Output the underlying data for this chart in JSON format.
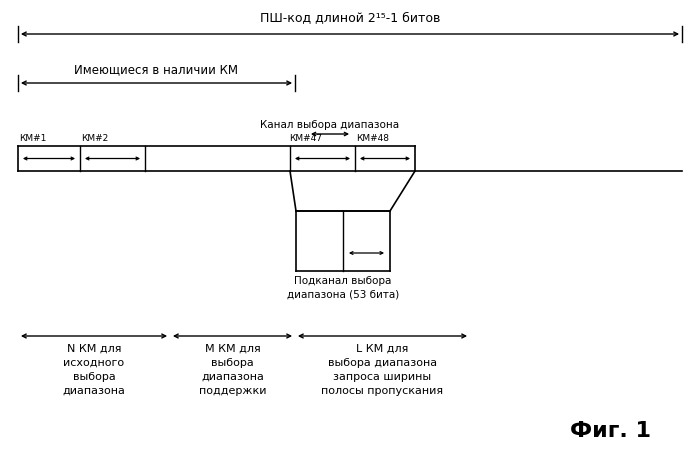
{
  "bg_color": "#ffffff",
  "fig_width": 7.0,
  "fig_height": 4.66,
  "title_text": "ПШ-код длиной 2¹⁵-1 битов",
  "available_km_text": "Имеющиеся в наличии КМ",
  "channel_text": "Канал выбора диапазона",
  "subchannel_text": "Подканал выбора\nдиапазона (53 бита)",
  "km1_text": "КМ#1",
  "km2_text": "КМ#2",
  "km47_text": "КМ#47",
  "km48_text": "КМ#48",
  "label1_line1": "N КМ для",
  "label1_line2": "исходного",
  "label1_line3": "выбора",
  "label1_line4": "диапазона",
  "label2_line1": "М КМ для",
  "label2_line2": "выбора",
  "label2_line3": "диапазона",
  "label2_line4": "поддержки",
  "label3_line1": "L КМ для",
  "label3_line2": "выбора диапазона",
  "label3_line3": "запроса ширины",
  "label3_line4": "полосы пропускания",
  "fig_label": "Фиг. 1",
  "text_color": "#000000",
  "line_color": "#000000"
}
